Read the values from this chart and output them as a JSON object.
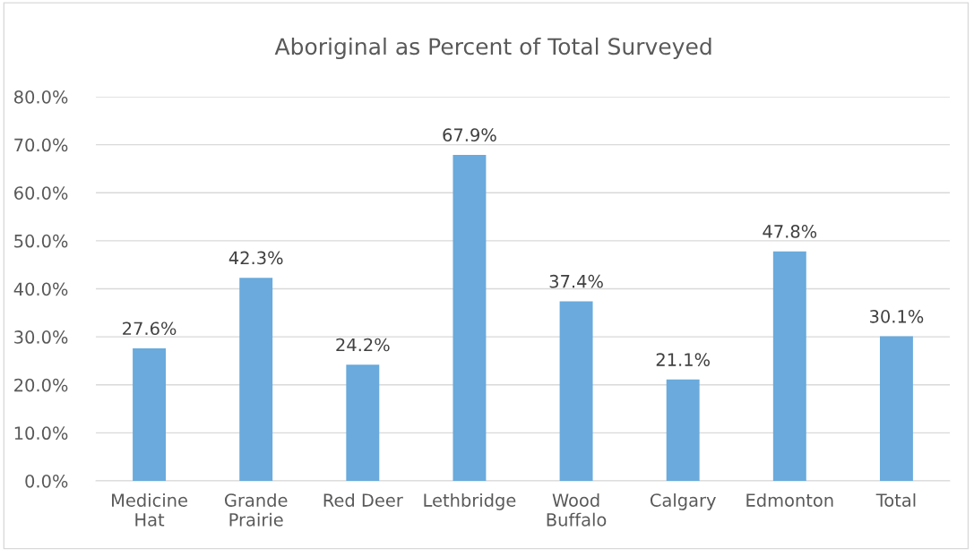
{
  "chart_data": {
    "type": "bar",
    "title": "Aboriginal as Percent of Total Surveyed",
    "categories": [
      "Medicine\nHat",
      "Grande\nPrairie",
      "Red Deer",
      "Lethbridge",
      "Wood\nBuffalo",
      "Calgary",
      "Edmonton",
      "Total"
    ],
    "values": [
      27.6,
      42.3,
      24.2,
      67.9,
      37.4,
      21.1,
      47.8,
      30.1
    ],
    "value_labels": [
      "27.6%",
      "42.3%",
      "24.2%",
      "67.9%",
      "37.4%",
      "21.1%",
      "47.8%",
      "30.1%"
    ],
    "color": "#6aaadc",
    "ylim": [
      0,
      80
    ],
    "yticks": [
      {
        "value": 0,
        "label": "0.0%"
      },
      {
        "value": 10,
        "label": "10.0%"
      },
      {
        "value": 20,
        "label": "20.0%"
      },
      {
        "value": 30,
        "label": "30.0%"
      },
      {
        "value": 40,
        "label": "40.0%"
      },
      {
        "value": 50,
        "label": "50.0%"
      },
      {
        "value": 60,
        "label": "60.0%"
      },
      {
        "value": 70,
        "label": "70.0%"
      },
      {
        "value": 80,
        "label": "80.0%"
      }
    ],
    "grid": "y",
    "legend": false
  }
}
